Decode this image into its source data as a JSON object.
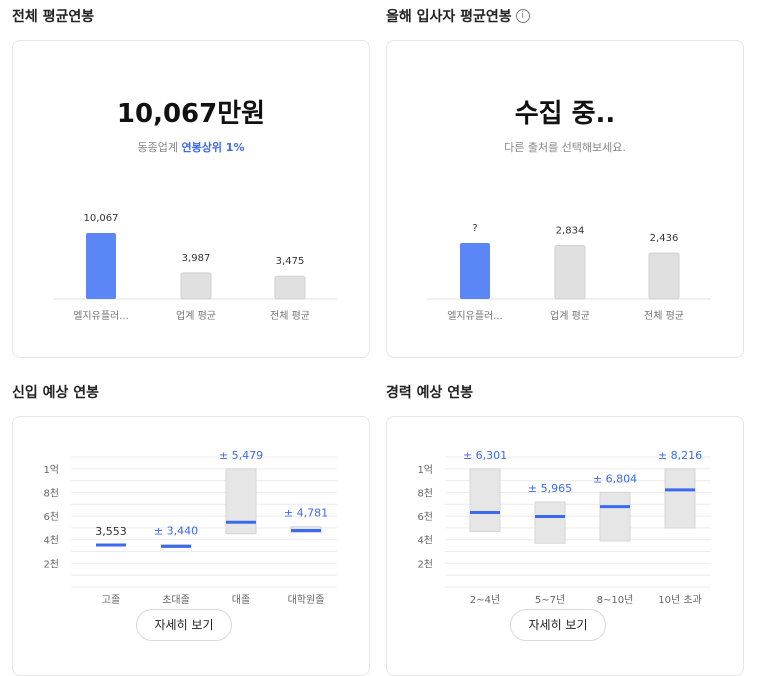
{
  "sections": {
    "total_avg": {
      "title": "전체 평균연봉",
      "main_value": "10,067만원",
      "sub_prefix": "동종업계 ",
      "sub_highlight": "연봉상위 1%"
    },
    "new_hire_avg": {
      "title": "올해 입사자 평균연봉",
      "info_icon": "i",
      "main_value": "수집 중..",
      "sub": "다른 출처를 선택해보세요."
    },
    "entry_expected": {
      "title": "신입 예상 연봉",
      "detail_button": "자세히 보기"
    },
    "career_expected": {
      "title": "경력 예상 연봉",
      "detail_button": "자세히 보기"
    }
  },
  "colors": {
    "accent": "#5b86f5",
    "range_accent": "#3b6af0",
    "bar_gray": "#e0e0e0"
  },
  "chart_data": [
    {
      "type": "bar",
      "categories": [
        "엘지유플러...",
        "업계 평균",
        "전체 평균"
      ],
      "values": [
        10067,
        3987,
        3475
      ],
      "labels": [
        "10,067",
        "3,987",
        "3,475"
      ],
      "ylim": [
        0,
        10067
      ]
    },
    {
      "type": "bar",
      "categories": [
        "엘지유플러...",
        "업계 평균",
        "전체 평균"
      ],
      "values": [
        null,
        2834,
        2436
      ],
      "labels": [
        "?",
        "2,834",
        "2,436"
      ],
      "ylim": [
        0,
        3500
      ]
    },
    {
      "type": "range",
      "categories": [
        "고졸",
        "초대졸",
        "대졸",
        "대학원졸"
      ],
      "y_ticks": [
        "1억",
        "8천",
        "6천",
        "4천",
        "2천"
      ],
      "y_tick_values": [
        10000,
        8000,
        6000,
        4000,
        2000
      ],
      "ylim": [
        0,
        11000
      ],
      "points": [
        {
          "value": 3553,
          "low": 3553,
          "high": 3553,
          "label": "3,553"
        },
        {
          "value": 3440,
          "low": 3400,
          "high": 3600,
          "label": "± 3,440"
        },
        {
          "value": 5479,
          "low": 4500,
          "high": 10000,
          "label": "± 5,479"
        },
        {
          "value": 4781,
          "low": 4600,
          "high": 5100,
          "label": "± 4,781"
        }
      ]
    },
    {
      "type": "range",
      "categories": [
        "2~4년",
        "5~7년",
        "8~10년",
        "10년 초과"
      ],
      "y_ticks": [
        "1억",
        "8천",
        "6천",
        "4천",
        "2천"
      ],
      "y_tick_values": [
        10000,
        8000,
        6000,
        4000,
        2000
      ],
      "ylim": [
        0,
        11000
      ],
      "points": [
        {
          "value": 6301,
          "low": 4700,
          "high": 10000,
          "label": "± 6,301"
        },
        {
          "value": 5965,
          "low": 3700,
          "high": 7200,
          "label": "± 5,965"
        },
        {
          "value": 6804,
          "low": 3900,
          "high": 8000,
          "label": "± 6,804"
        },
        {
          "value": 8216,
          "low": 5000,
          "high": 10000,
          "label": "± 8,216"
        }
      ]
    }
  ]
}
